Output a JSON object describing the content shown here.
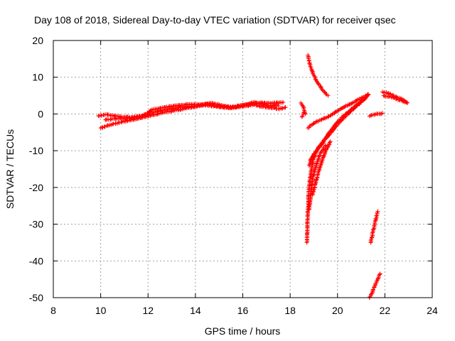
{
  "chart_data": {
    "type": "scatter",
    "title": "Day 108 of 2018, Sidereal Day-to-day VTEC variation (SDTVAR) for receiver qsec",
    "xlabel": "GPS time / hours",
    "ylabel": "SDTVAR / TECUs",
    "xlim": [
      8,
      24
    ],
    "ylim": [
      -50,
      20
    ],
    "xticks": [
      8,
      10,
      12,
      14,
      16,
      18,
      20,
      22,
      24
    ],
    "yticks": [
      -50,
      -40,
      -30,
      -20,
      -10,
      0,
      10,
      20
    ],
    "grid": true,
    "marker": "plus",
    "color": "#ff0000",
    "segments": [
      {
        "x": [
          9.9,
          10.3,
          10.7,
          11.2,
          11.8,
          12.3,
          12.9,
          13.5,
          14.0,
          14.5,
          15.0,
          15.5,
          16.0,
          16.5,
          17.0,
          17.5,
          17.8
        ],
        "y": [
          -0.5,
          -0.2,
          -0.6,
          -0.9,
          -0.5,
          0.6,
          1.3,
          1.9,
          2.2,
          2.4,
          1.9,
          1.6,
          2.1,
          2.5,
          1.8,
          1.4,
          1.8
        ]
      },
      {
        "x": [
          10.0,
          10.5,
          11.0,
          11.5,
          12.0,
          12.5,
          13.0,
          13.5,
          14.0,
          14.5,
          15.0,
          15.5,
          16.0,
          16.5,
          17.0,
          17.5
        ],
        "y": [
          -3.8,
          -2.8,
          -2.0,
          -1.4,
          -0.6,
          0.2,
          0.8,
          1.4,
          2.0,
          2.8,
          2.0,
          1.8,
          2.4,
          3.2,
          2.4,
          2.2
        ]
      },
      {
        "x": [
          10.2,
          10.7,
          11.2,
          11.7,
          12.2,
          12.7,
          13.2,
          13.7,
          14.2,
          14.7,
          15.2,
          15.7,
          16.2,
          16.7,
          17.2,
          17.7
        ],
        "y": [
          -1.6,
          -1.2,
          -1.3,
          -0.7,
          1.2,
          1.8,
          2.3,
          2.6,
          2.6,
          3.0,
          2.2,
          1.9,
          2.6,
          3.0,
          2.9,
          3.2
        ]
      },
      {
        "x": [
          18.45,
          18.55,
          18.65
        ],
        "y": [
          3.0,
          2.0,
          0.0
        ]
      },
      {
        "x": [
          18.5,
          18.6
        ],
        "y": [
          -0.8,
          0.6
        ]
      },
      {
        "x": [
          18.75,
          18.85,
          19.0,
          19.2,
          19.4,
          19.6
        ],
        "y": [
          16.0,
          13.0,
          10.5,
          8.2,
          6.3,
          5.0
        ]
      },
      {
        "x": [
          18.75,
          19.0,
          19.3,
          19.6,
          19.9,
          20.2,
          20.5,
          20.8,
          21.1,
          21.3
        ],
        "y": [
          -3.8,
          -2.5,
          -1.6,
          -0.8,
          0.5,
          1.6,
          2.6,
          3.6,
          4.6,
          5.2
        ]
      },
      {
        "x": [
          18.8,
          19.0,
          19.3,
          19.6,
          20.0,
          20.4,
          20.8,
          21.2
        ],
        "y": [
          -14.0,
          -11.0,
          -8.5,
          -5.5,
          -2.2,
          0.3,
          2.4,
          4.4
        ]
      },
      {
        "x": [
          18.85,
          19.1,
          19.4,
          19.8,
          20.2,
          20.6,
          21.0,
          21.3
        ],
        "y": [
          -12.5,
          -10.2,
          -7.5,
          -4.5,
          -1.5,
          1.0,
          3.2,
          5.4
        ]
      },
      {
        "x": [
          18.7,
          18.75,
          18.8,
          18.9,
          19.0,
          19.2,
          19.4
        ],
        "y": [
          -35.0,
          -27.0,
          -20.0,
          -15.0,
          -12.0,
          -9.0,
          -7.5
        ]
      },
      {
        "x": [
          18.8,
          18.9,
          19.0,
          19.15,
          19.3,
          19.5
        ],
        "y": [
          -26.0,
          -20.0,
          -16.0,
          -13.0,
          -10.5,
          -8.5
        ]
      },
      {
        "x": [
          18.95,
          19.1,
          19.3,
          19.5,
          19.7
        ],
        "y": [
          -22.0,
          -18.0,
          -13.5,
          -10.0,
          -7.5
        ]
      },
      {
        "x": [
          21.35,
          21.5,
          21.7,
          21.9
        ],
        "y": [
          -0.6,
          -0.2,
          0.0,
          0.2
        ]
      },
      {
        "x": [
          21.4,
          21.5,
          21.6,
          21.7
        ],
        "y": [
          -35.0,
          -32.0,
          -29.0,
          -26.5
        ]
      },
      {
        "x": [
          21.35,
          21.5,
          21.65,
          21.8
        ],
        "y": [
          -50.0,
          -48.0,
          -45.5,
          -43.5
        ]
      },
      {
        "x": [
          21.9,
          22.2,
          22.5,
          22.8,
          22.95
        ],
        "y": [
          6.0,
          5.5,
          4.6,
          3.8,
          3.0
        ]
      },
      {
        "x": [
          21.95,
          22.3,
          22.6,
          22.9
        ],
        "y": [
          5.0,
          4.5,
          3.8,
          3.2
        ]
      }
    ]
  }
}
